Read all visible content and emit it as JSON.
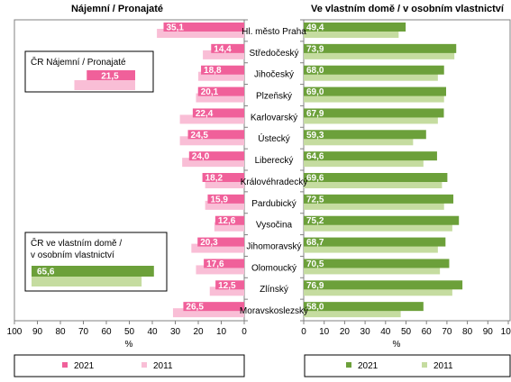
{
  "chart_data": [
    {
      "type": "bar",
      "orientation": "horizontal",
      "title": "Nájemní / Pronajaté",
      "xlabel": "%",
      "xlim": [
        100,
        0
      ],
      "x_ticks": [
        "100",
        "90",
        "80",
        "70",
        "60",
        "50",
        "40",
        "30",
        "20",
        "10",
        "0"
      ],
      "series": [
        {
          "name": "2021",
          "color": "#f0609a",
          "values": [
            35.1,
            14.4,
            18.8,
            20.1,
            22.4,
            24.5,
            24.0,
            18.2,
            15.9,
            12.6,
            20.3,
            17.6,
            12.5,
            26.5
          ]
        },
        {
          "name": "2011",
          "color": "#f9bed6",
          "values": [
            38,
            18,
            20,
            21,
            28,
            28,
            27,
            17,
            17,
            13,
            23,
            21,
            15,
            31
          ]
        }
      ],
      "inset": {
        "title": "ČR Nájemní / Pronajaté",
        "values": [
          {
            "year": "2021",
            "value": 21.5
          },
          {
            "year": "2011",
            "value": 27
          }
        ]
      },
      "legend": [
        "2021",
        "2011"
      ]
    },
    {
      "type": "bar",
      "orientation": "horizontal",
      "title": "Ve vlastním domě / v osobním vlastnictví",
      "xlabel": "%",
      "xlim": [
        0,
        100
      ],
      "x_ticks": [
        "0",
        "10",
        "20",
        "30",
        "40",
        "50",
        "60",
        "70",
        "80",
        "90",
        "100"
      ],
      "series": [
        {
          "name": "2021",
          "color": "#6ca03a",
          "values": [
            49.4,
            73.9,
            68.0,
            69.0,
            67.9,
            59.3,
            64.6,
            69.6,
            72.5,
            75.2,
            68.7,
            70.5,
            76.9,
            58.0
          ]
        },
        {
          "name": "2011",
          "color": "#c5dca0",
          "values": [
            46,
            73,
            65,
            68,
            65,
            53,
            58,
            67,
            68,
            72,
            65,
            66,
            72,
            47
          ]
        }
      ],
      "inset": {
        "title": "ČR ve vlastním domě / v osobním vlastnictví",
        "values": [
          {
            "year": "2021",
            "value": 65.6
          },
          {
            "year": "2011",
            "value": 59
          }
        ]
      },
      "legend": [
        "2021",
        "2011"
      ]
    }
  ],
  "categories": [
    "Hl. město Praha",
    "Středočeský",
    "Jihočeský",
    "Plzeňský",
    "Karlovarský",
    "Ústecký",
    "Liberecký",
    "Královéhradecký",
    "Pardubický",
    "Vysočina",
    "Jihomoravský",
    "Olomoucký",
    "Zlínský",
    "Moravskoslezský"
  ],
  "colors": {
    "rent_2021": "#f0609a",
    "rent_2011": "#f9bed6",
    "own_2021": "#6ca03a",
    "own_2011": "#c5dca0"
  }
}
